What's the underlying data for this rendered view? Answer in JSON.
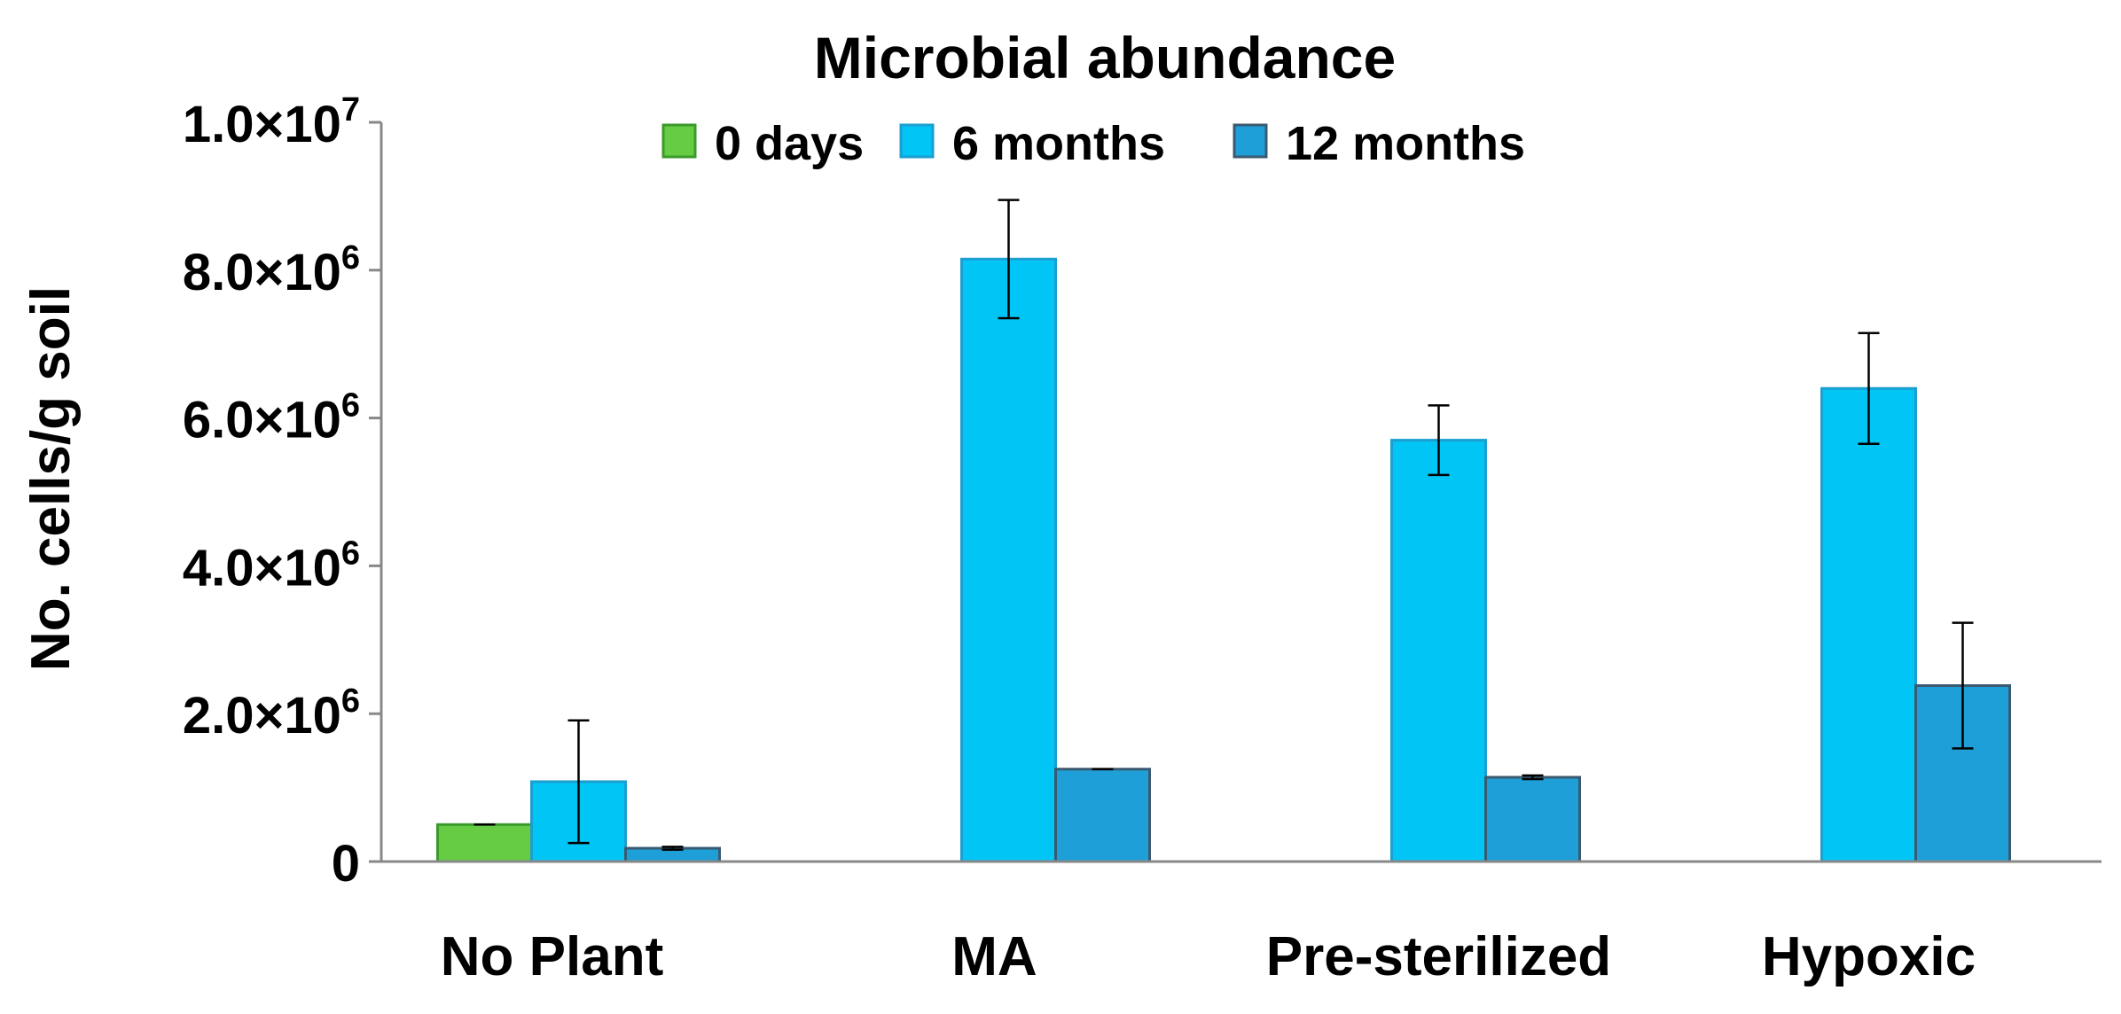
{
  "chart_data": {
    "type": "bar",
    "title": "Microbial abundance",
    "xlabel": "",
    "ylabel": "No. cells/g soil",
    "ylim": [
      0,
      10000000
    ],
    "categories": [
      "No Plant",
      "MA",
      "Pre-sterilized",
      "Hypoxic"
    ],
    "y_ticks": [
      {
        "value": 0,
        "mantissa": "0",
        "exponent": ""
      },
      {
        "value": 2000000,
        "mantissa": "2.0×10",
        "exponent": "6"
      },
      {
        "value": 4000000,
        "mantissa": "4.0×10",
        "exponent": "6"
      },
      {
        "value": 6000000,
        "mantissa": "6.0×10",
        "exponent": "6"
      },
      {
        "value": 8000000,
        "mantissa": "8.0×10",
        "exponent": "6"
      },
      {
        "value": 10000000,
        "mantissa": "1.0×10",
        "exponent": "7"
      }
    ],
    "series": [
      {
        "name": "0 days",
        "color": "#66cc44",
        "stroke": "#3a9a2a",
        "values": [
          500000,
          null,
          null,
          null
        ],
        "errors": [
          0,
          null,
          null,
          null
        ]
      },
      {
        "name": "6 months",
        "color": "#00c5f5",
        "stroke": "#1a9fd0",
        "values": [
          1080000,
          8150000,
          5700000,
          6400000
        ],
        "errors": [
          830000,
          800000,
          470000,
          750000
        ]
      },
      {
        "name": "12 months",
        "color": "#1e9fd8",
        "stroke": "#3a5a70",
        "values": [
          180000,
          1250000,
          1140000,
          2380000
        ],
        "errors": [
          20000,
          0,
          25000,
          850000
        ]
      }
    ],
    "grid": false,
    "legend": "top"
  }
}
